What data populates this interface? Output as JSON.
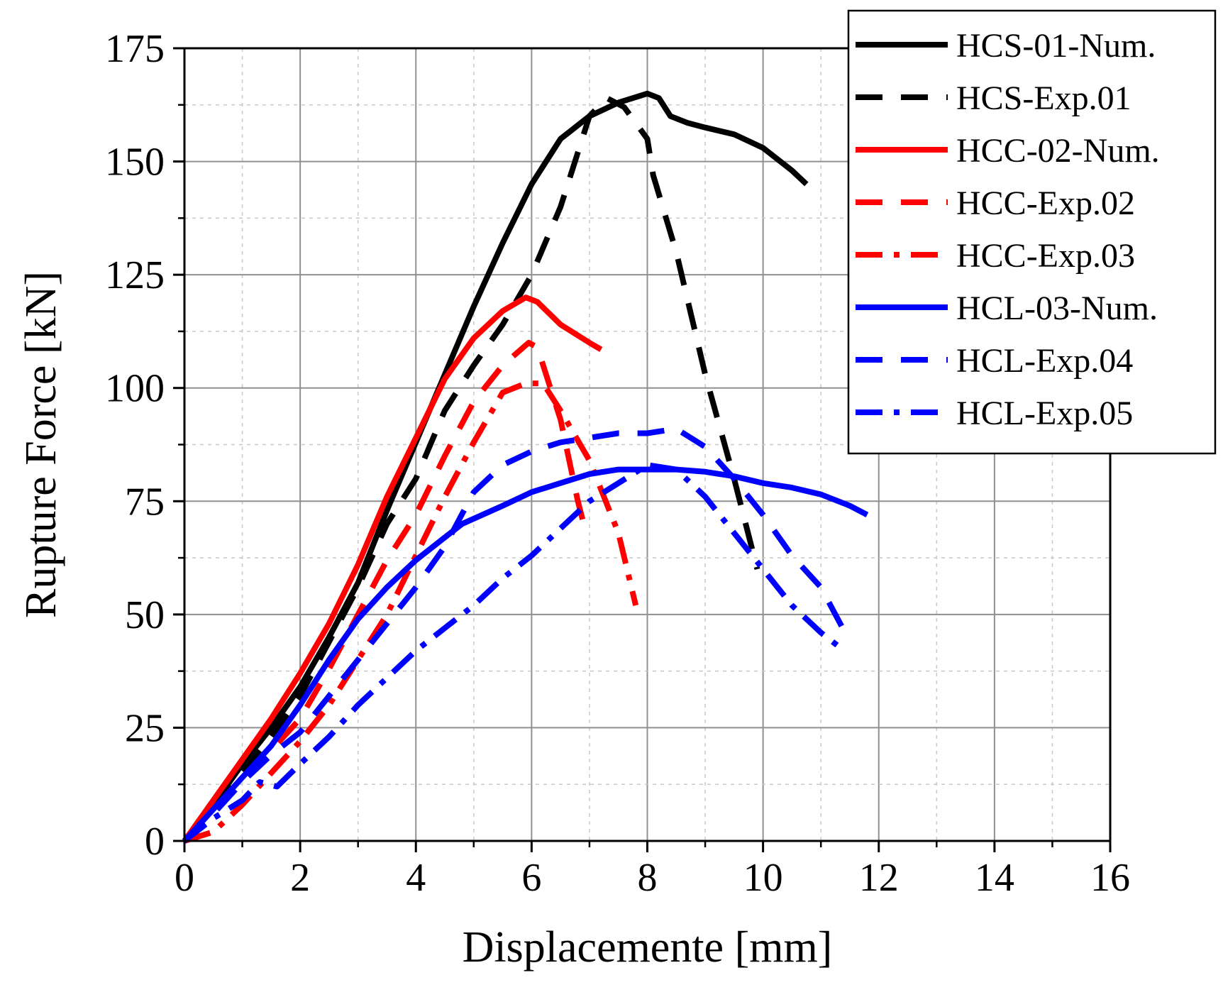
{
  "chart_data": {
    "type": "line",
    "xlabel": "Displacemente [mm]",
    "ylabel": "Rupture Force [kN]",
    "xlim": [
      0,
      16
    ],
    "ylim": [
      0,
      175
    ],
    "xticks": [
      0,
      2,
      4,
      6,
      8,
      10,
      12,
      14,
      16
    ],
    "yticks": [
      0,
      25,
      50,
      75,
      100,
      125,
      150,
      175
    ],
    "grid": true,
    "legend_position": "top-right",
    "series": [
      {
        "name": "HCS-01-Num.",
        "color": "#000000",
        "style": "solid",
        "points": [
          [
            0,
            0
          ],
          [
            0.5,
            8
          ],
          [
            1,
            17
          ],
          [
            1.5,
            25
          ],
          [
            2,
            34
          ],
          [
            2.5,
            45
          ],
          [
            3,
            57
          ],
          [
            3.5,
            73
          ],
          [
            4,
            88
          ],
          [
            4.5,
            103
          ],
          [
            5,
            118
          ],
          [
            5.5,
            132
          ],
          [
            6,
            145
          ],
          [
            6.5,
            155
          ],
          [
            7,
            160
          ],
          [
            7.5,
            163
          ],
          [
            8,
            165
          ],
          [
            8.2,
            164
          ],
          [
            8.4,
            160
          ],
          [
            8.7,
            158.5
          ],
          [
            9,
            157.5
          ],
          [
            9.5,
            156
          ],
          [
            10,
            153
          ],
          [
            10.5,
            148
          ],
          [
            10.75,
            145
          ]
        ]
      },
      {
        "name": "HCS-Exp.01",
        "color": "#000000",
        "style": "dash",
        "points": [
          [
            0,
            0
          ],
          [
            0.5,
            7
          ],
          [
            1,
            15
          ],
          [
            1.5,
            23
          ],
          [
            2,
            32
          ],
          [
            2.5,
            44
          ],
          [
            3,
            56
          ],
          [
            3.5,
            70
          ],
          [
            4,
            80
          ],
          [
            4.5,
            95
          ],
          [
            5,
            105
          ],
          [
            5.5,
            114
          ],
          [
            6,
            125
          ],
          [
            6.5,
            140
          ],
          [
            7,
            160
          ],
          [
            7.3,
            164
          ],
          [
            7.6,
            162
          ],
          [
            8,
            155
          ],
          [
            8.1,
            147
          ],
          [
            8.5,
            130
          ],
          [
            9,
            103
          ],
          [
            9.5,
            80
          ],
          [
            9.9,
            60
          ]
        ]
      },
      {
        "name": "HCC-02-Num.",
        "color": "#ff0000",
        "style": "solid",
        "points": [
          [
            0,
            0
          ],
          [
            0.5,
            9
          ],
          [
            1,
            18
          ],
          [
            1.5,
            27
          ],
          [
            2,
            37
          ],
          [
            2.5,
            48
          ],
          [
            3,
            61
          ],
          [
            3.5,
            76
          ],
          [
            4,
            89
          ],
          [
            4.5,
            102
          ],
          [
            5,
            111
          ],
          [
            5.5,
            117
          ],
          [
            5.9,
            120
          ],
          [
            6.1,
            119
          ],
          [
            6.5,
            114
          ],
          [
            7,
            110
          ],
          [
            7.2,
            108.5
          ]
        ]
      },
      {
        "name": "HCC-Exp.02",
        "color": "#ff0000",
        "style": "dash",
        "points": [
          [
            0,
            0
          ],
          [
            0.5,
            7
          ],
          [
            1,
            13
          ],
          [
            1.5,
            20
          ],
          [
            2,
            27
          ],
          [
            2.5,
            38
          ],
          [
            3,
            50
          ],
          [
            3.5,
            62
          ],
          [
            4,
            72
          ],
          [
            4.5,
            85
          ],
          [
            5,
            97
          ],
          [
            5.5,
            105
          ],
          [
            5.95,
            110
          ],
          [
            6.1,
            109
          ],
          [
            6.5,
            93
          ],
          [
            6.8,
            75
          ],
          [
            6.9,
            70
          ],
          [
            7,
            68
          ]
        ]
      },
      {
        "name": "HCC-Exp.03",
        "color": "#ff0000",
        "style": "dashdot",
        "points": [
          [
            0,
            0
          ],
          [
            0.5,
            2
          ],
          [
            1,
            8
          ],
          [
            1.5,
            15
          ],
          [
            2,
            22
          ],
          [
            2.5,
            30
          ],
          [
            3,
            40
          ],
          [
            3.5,
            50
          ],
          [
            4,
            63
          ],
          [
            4.5,
            76
          ],
          [
            5,
            88
          ],
          [
            5.5,
            99
          ],
          [
            5.9,
            101
          ],
          [
            6.2,
            101
          ],
          [
            6.5,
            95
          ],
          [
            7,
            84
          ],
          [
            7.5,
            68
          ],
          [
            7.8,
            52
          ]
        ]
      },
      {
        "name": "HCL-03-Num.",
        "color": "#0000ff",
        "style": "solid",
        "points": [
          [
            0,
            0
          ],
          [
            0.5,
            7
          ],
          [
            1,
            14
          ],
          [
            1.5,
            21
          ],
          [
            2,
            30
          ],
          [
            2.5,
            40
          ],
          [
            3,
            49
          ],
          [
            3.5,
            56
          ],
          [
            4,
            62
          ],
          [
            4.5,
            67
          ],
          [
            4.8,
            70
          ],
          [
            5.5,
            74
          ],
          [
            6,
            77
          ],
          [
            7,
            81
          ],
          [
            7.5,
            82
          ],
          [
            8,
            82
          ],
          [
            8.5,
            82
          ],
          [
            9,
            81.5
          ],
          [
            9.5,
            80.5
          ],
          [
            10,
            79
          ],
          [
            10.5,
            78
          ],
          [
            11,
            76.5
          ],
          [
            11.5,
            74
          ],
          [
            11.8,
            72
          ]
        ]
      },
      {
        "name": "HCL-Exp.04",
        "color": "#0000ff",
        "style": "dash",
        "points": [
          [
            0,
            0
          ],
          [
            0.5,
            6
          ],
          [
            1,
            13
          ],
          [
            1.5,
            19
          ],
          [
            2,
            24
          ],
          [
            2.5,
            32
          ],
          [
            3,
            40
          ],
          [
            3.5,
            48
          ],
          [
            4,
            56
          ],
          [
            4.5,
            65
          ],
          [
            5,
            77
          ],
          [
            5.5,
            83
          ],
          [
            6,
            86
          ],
          [
            6.5,
            88
          ],
          [
            7,
            89
          ],
          [
            7.5,
            90
          ],
          [
            8,
            90
          ],
          [
            8.5,
            91
          ],
          [
            9,
            87
          ],
          [
            9.5,
            80
          ],
          [
            10,
            72
          ],
          [
            10.5,
            63
          ],
          [
            11,
            56
          ],
          [
            11.5,
            44
          ]
        ]
      },
      {
        "name": "HCL-Exp.05",
        "color": "#0000ff",
        "style": "dashdot",
        "points": [
          [
            0,
            0
          ],
          [
            0.5,
            5
          ],
          [
            1,
            9
          ],
          [
            1.3,
            13
          ],
          [
            1.6,
            12
          ],
          [
            2,
            17
          ],
          [
            2.5,
            23
          ],
          [
            3,
            30
          ],
          [
            3.5,
            36
          ],
          [
            4,
            42
          ],
          [
            4.5,
            47
          ],
          [
            5,
            52
          ],
          [
            5.5,
            58
          ],
          [
            6,
            63
          ],
          [
            6.5,
            69
          ],
          [
            7,
            75
          ],
          [
            7.5,
            79
          ],
          [
            8,
            83
          ],
          [
            8.5,
            82
          ],
          [
            9,
            76
          ],
          [
            9.5,
            68
          ],
          [
            10,
            60
          ],
          [
            10.5,
            52
          ],
          [
            11,
            46
          ],
          [
            11.3,
            43
          ]
        ]
      }
    ]
  }
}
